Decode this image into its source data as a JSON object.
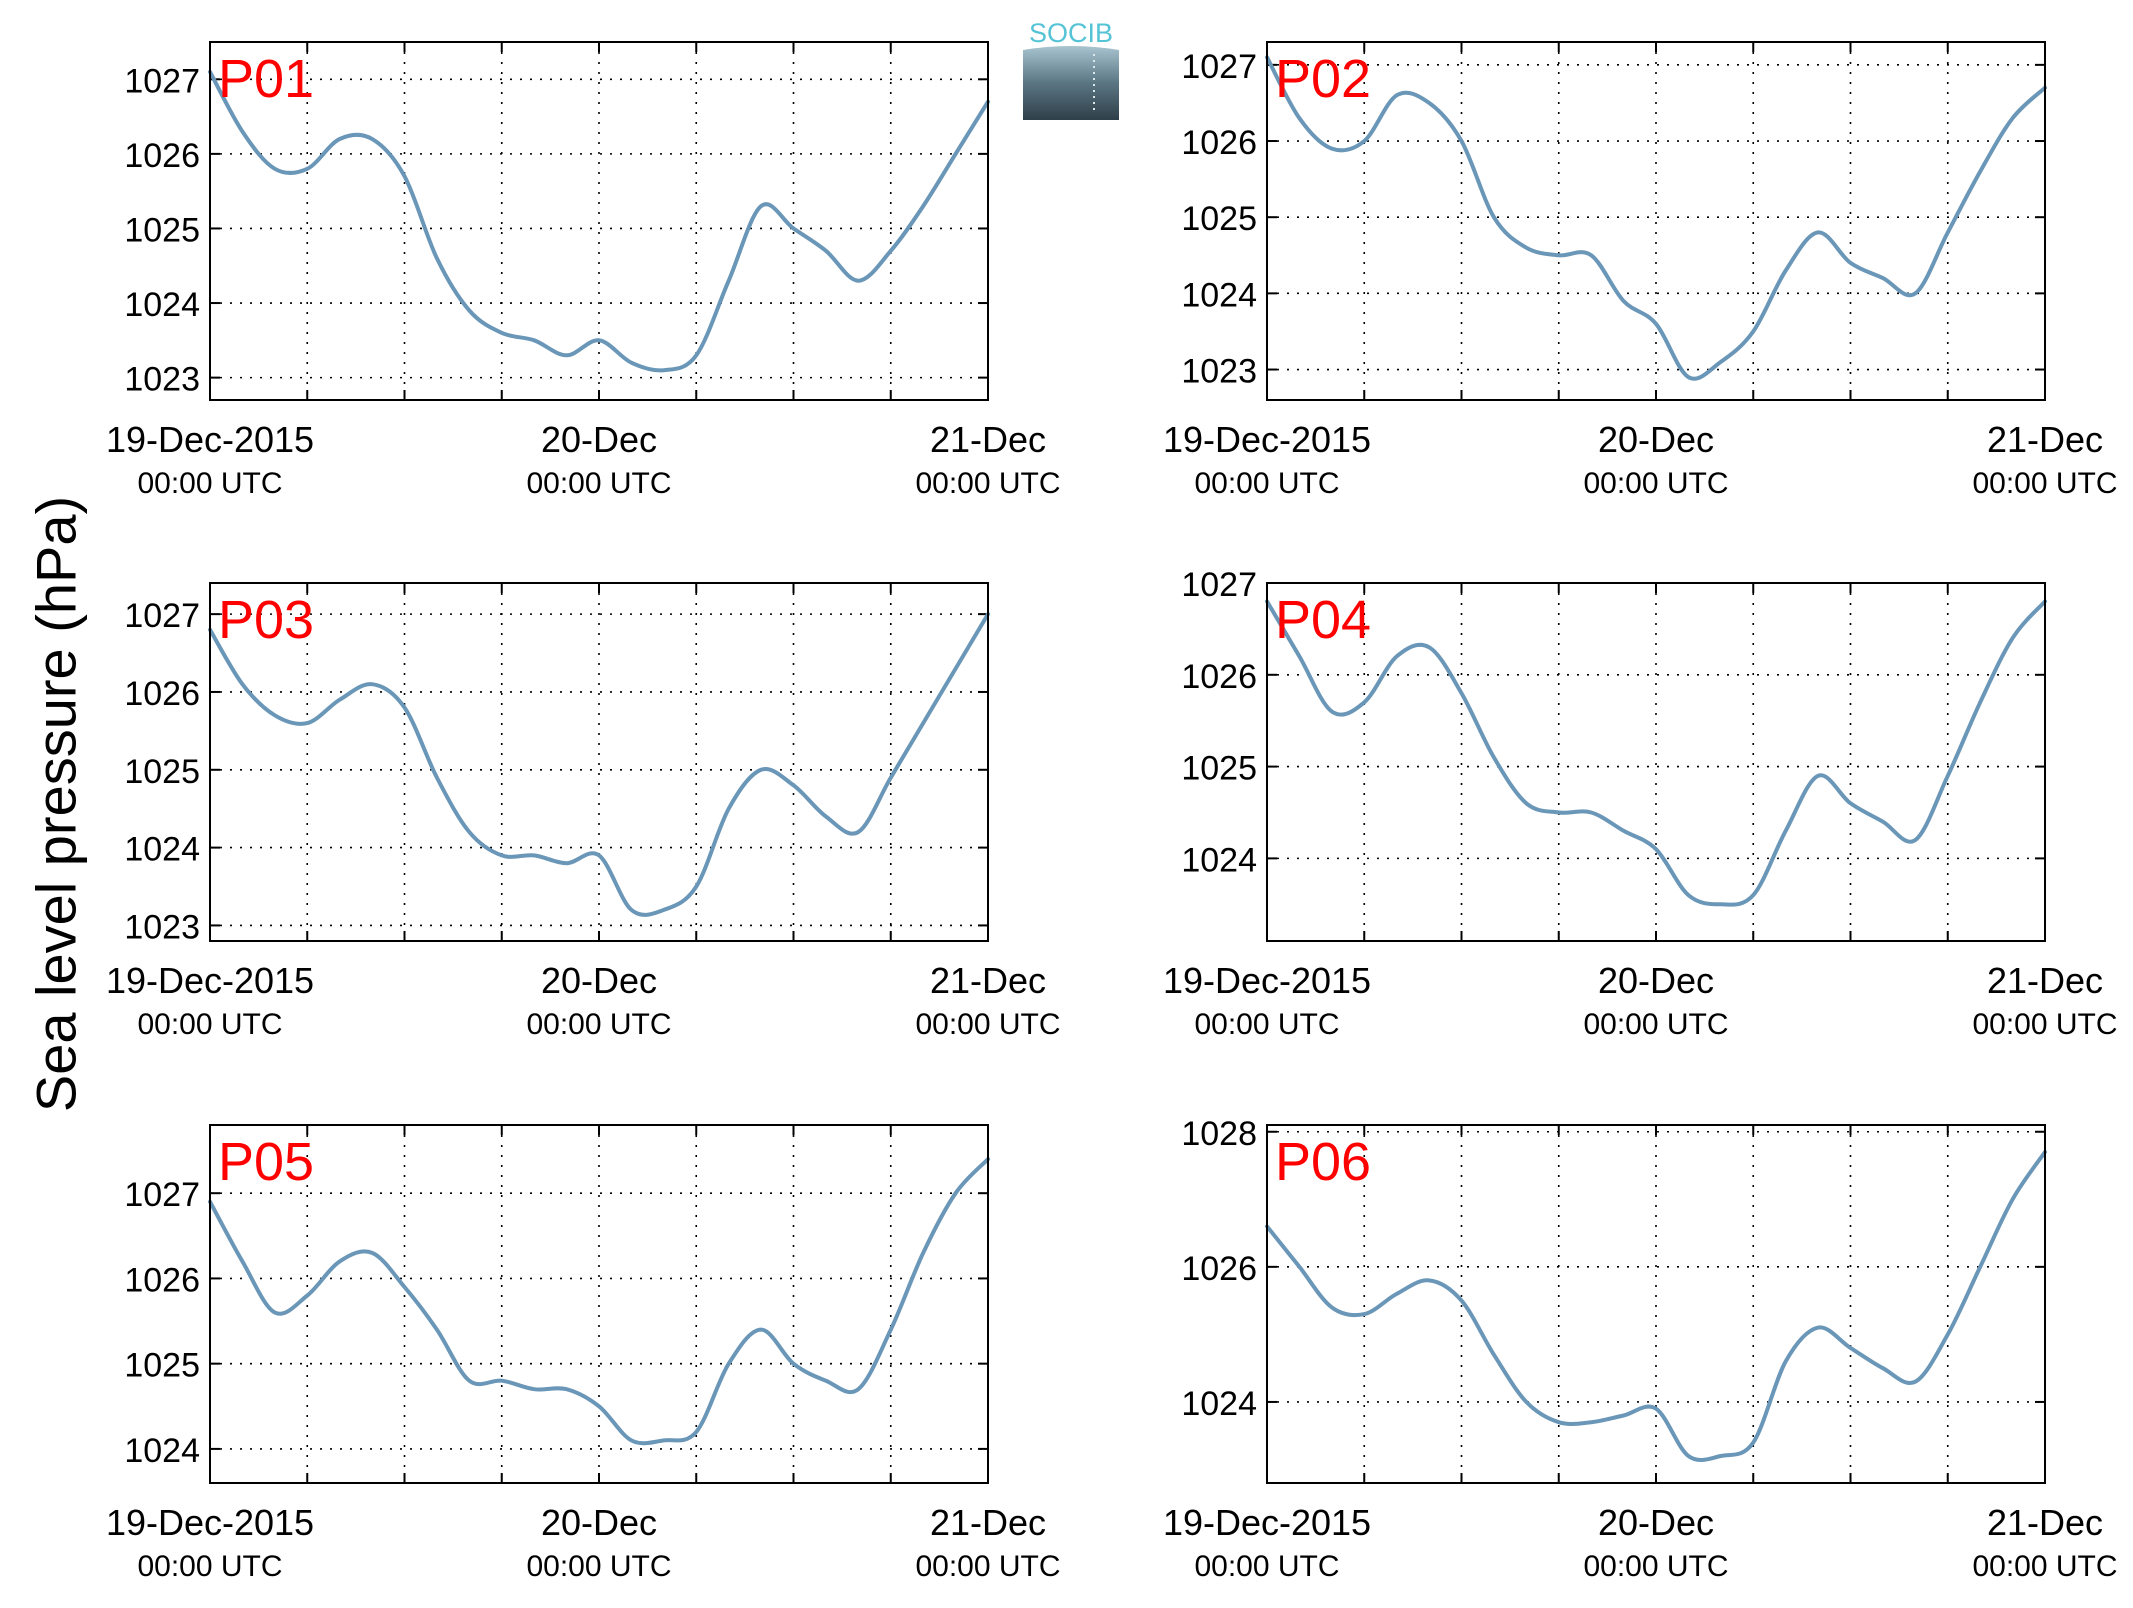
{
  "figure": {
    "ylabel": "Sea level pressure (hPa)",
    "logo_text": "SOCIB"
  },
  "colors": {
    "line": "#6a96b8",
    "panel_label": "#ff0000",
    "axis": "#000000",
    "grid": "#000000"
  },
  "chart_data": [
    {
      "type": "line",
      "panel_label": "P01",
      "x": [
        0,
        2,
        4,
        6,
        8,
        10,
        12,
        14,
        16,
        18,
        20,
        22,
        24,
        26,
        28,
        30,
        32,
        34,
        36,
        38,
        40,
        42,
        44,
        46,
        48
      ],
      "y": [
        1027.1,
        1026.3,
        1025.8,
        1025.8,
        1026.2,
        1026.2,
        1025.7,
        1024.6,
        1023.9,
        1023.6,
        1023.5,
        1023.3,
        1023.5,
        1023.2,
        1023.1,
        1023.3,
        1024.3,
        1025.3,
        1025.0,
        1024.7,
        1024.3,
        1024.7,
        1025.3,
        1026.0,
        1026.7
      ],
      "ylim": [
        1022.7,
        1027.5
      ],
      "yticks": [
        1023,
        1024,
        1025,
        1026,
        1027
      ],
      "xlim": [
        0,
        48
      ],
      "xtick_hours": [
        0,
        6,
        12,
        18,
        24,
        30,
        36,
        42,
        48
      ],
      "xticklabels": [
        {
          "hour": 0,
          "date": "19-Dec-2015",
          "time": "00:00 UTC"
        },
        {
          "hour": 24,
          "date": "20-Dec",
          "time": "00:00 UTC"
        },
        {
          "hour": 48,
          "date": "21-Dec",
          "time": "00:00 UTC"
        }
      ]
    },
    {
      "type": "line",
      "panel_label": "P02",
      "x": [
        0,
        2,
        4,
        6,
        8,
        10,
        12,
        14,
        16,
        18,
        20,
        22,
        24,
        26,
        28,
        30,
        32,
        34,
        36,
        38,
        40,
        42,
        44,
        46,
        48
      ],
      "y": [
        1027.1,
        1026.3,
        1025.9,
        1026.0,
        1026.6,
        1026.5,
        1026.0,
        1025.0,
        1024.6,
        1024.5,
        1024.5,
        1023.9,
        1023.6,
        1022.9,
        1023.1,
        1023.5,
        1024.3,
        1024.8,
        1024.4,
        1024.2,
        1024.0,
        1024.8,
        1025.6,
        1026.3,
        1026.7
      ],
      "ylim": [
        1022.6,
        1027.3
      ],
      "yticks": [
        1023,
        1024,
        1025,
        1026,
        1027
      ],
      "xlim": [
        0,
        48
      ],
      "xtick_hours": [
        0,
        6,
        12,
        18,
        24,
        30,
        36,
        42,
        48
      ],
      "xticklabels": [
        {
          "hour": 0,
          "date": "19-Dec-2015",
          "time": "00:00 UTC"
        },
        {
          "hour": 24,
          "date": "20-Dec",
          "time": "00:00 UTC"
        },
        {
          "hour": 48,
          "date": "21-Dec",
          "time": "00:00 UTC"
        }
      ]
    },
    {
      "type": "line",
      "panel_label": "P03",
      "x": [
        0,
        2,
        4,
        6,
        8,
        10,
        12,
        14,
        16,
        18,
        20,
        22,
        24,
        26,
        28,
        30,
        32,
        34,
        36,
        38,
        40,
        42,
        44,
        46,
        48
      ],
      "y": [
        1026.8,
        1026.1,
        1025.7,
        1025.6,
        1025.9,
        1026.1,
        1025.8,
        1024.9,
        1024.2,
        1023.9,
        1023.9,
        1023.8,
        1023.9,
        1023.2,
        1023.2,
        1023.5,
        1024.5,
        1025.0,
        1024.8,
        1024.4,
        1024.2,
        1024.9,
        1025.6,
        1026.3,
        1027.0
      ],
      "ylim": [
        1022.8,
        1027.4
      ],
      "yticks": [
        1023,
        1024,
        1025,
        1026,
        1027
      ],
      "xlim": [
        0,
        48
      ],
      "xtick_hours": [
        0,
        6,
        12,
        18,
        24,
        30,
        36,
        42,
        48
      ],
      "xticklabels": [
        {
          "hour": 0,
          "date": "19-Dec-2015",
          "time": "00:00 UTC"
        },
        {
          "hour": 24,
          "date": "20-Dec",
          "time": "00:00 UTC"
        },
        {
          "hour": 48,
          "date": "21-Dec",
          "time": "00:00 UTC"
        }
      ]
    },
    {
      "type": "line",
      "panel_label": "P04",
      "x": [
        0,
        2,
        4,
        6,
        8,
        10,
        12,
        14,
        16,
        18,
        20,
        22,
        24,
        26,
        28,
        30,
        32,
        34,
        36,
        38,
        40,
        42,
        44,
        46,
        48
      ],
      "y": [
        1026.8,
        1026.2,
        1025.6,
        1025.7,
        1026.2,
        1026.3,
        1025.8,
        1025.1,
        1024.6,
        1024.5,
        1024.5,
        1024.3,
        1024.1,
        1023.6,
        1023.5,
        1023.6,
        1024.3,
        1024.9,
        1024.6,
        1024.4,
        1024.2,
        1024.9,
        1025.7,
        1026.4,
        1026.8
      ],
      "ylim": [
        1023.1,
        1027.0
      ],
      "yticks": [
        1024,
        1025,
        1026,
        1027
      ],
      "xlim": [
        0,
        48
      ],
      "xtick_hours": [
        0,
        6,
        12,
        18,
        24,
        30,
        36,
        42,
        48
      ],
      "xticklabels": [
        {
          "hour": 0,
          "date": "19-Dec-2015",
          "time": "00:00 UTC"
        },
        {
          "hour": 24,
          "date": "20-Dec",
          "time": "00:00 UTC"
        },
        {
          "hour": 48,
          "date": "21-Dec",
          "time": "00:00 UTC"
        }
      ]
    },
    {
      "type": "line",
      "panel_label": "P05",
      "x": [
        0,
        2,
        4,
        6,
        8,
        10,
        12,
        14,
        16,
        18,
        20,
        22,
        24,
        26,
        28,
        30,
        32,
        34,
        36,
        38,
        40,
        42,
        44,
        46,
        48
      ],
      "y": [
        1026.9,
        1026.2,
        1025.6,
        1025.8,
        1026.2,
        1026.3,
        1025.9,
        1025.4,
        1024.8,
        1024.8,
        1024.7,
        1024.7,
        1024.5,
        1024.1,
        1024.1,
        1024.2,
        1025.0,
        1025.4,
        1025.0,
        1024.8,
        1024.7,
        1025.4,
        1026.3,
        1027.0,
        1027.4
      ],
      "ylim": [
        1023.6,
        1027.8
      ],
      "yticks": [
        1024,
        1025,
        1026,
        1027
      ],
      "xlim": [
        0,
        48
      ],
      "xtick_hours": [
        0,
        6,
        12,
        18,
        24,
        30,
        36,
        42,
        48
      ],
      "xticklabels": [
        {
          "hour": 0,
          "date": "19-Dec-2015",
          "time": "00:00 UTC"
        },
        {
          "hour": 24,
          "date": "20-Dec",
          "time": "00:00 UTC"
        },
        {
          "hour": 48,
          "date": "21-Dec",
          "time": "00:00 UTC"
        }
      ]
    },
    {
      "type": "line",
      "panel_label": "P06",
      "x": [
        0,
        2,
        4,
        6,
        8,
        10,
        12,
        14,
        16,
        18,
        20,
        22,
        24,
        26,
        28,
        30,
        32,
        34,
        36,
        38,
        40,
        42,
        44,
        46,
        48
      ],
      "y": [
        1026.6,
        1026.0,
        1025.4,
        1025.3,
        1025.6,
        1025.8,
        1025.5,
        1024.7,
        1024.0,
        1023.7,
        1023.7,
        1023.8,
        1023.9,
        1023.2,
        1023.2,
        1023.4,
        1024.6,
        1025.1,
        1024.8,
        1024.5,
        1024.3,
        1025.0,
        1026.0,
        1027.0,
        1027.7
      ],
      "ylim": [
        1022.8,
        1028.1
      ],
      "yticks": [
        1024,
        1026,
        1028
      ],
      "xlim": [
        0,
        48
      ],
      "xtick_hours": [
        0,
        6,
        12,
        18,
        24,
        30,
        36,
        42,
        48
      ],
      "xticklabels": [
        {
          "hour": 0,
          "date": "19-Dec-2015",
          "time": "00:00 UTC"
        },
        {
          "hour": 24,
          "date": "20-Dec",
          "time": "00:00 UTC"
        },
        {
          "hour": 48,
          "date": "21-Dec",
          "time": "00:00 UTC"
        }
      ]
    }
  ]
}
